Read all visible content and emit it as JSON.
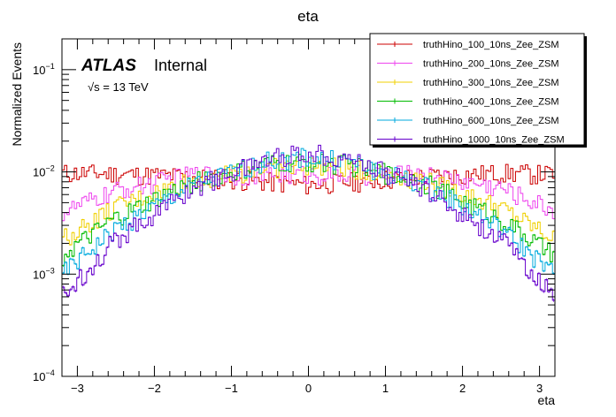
{
  "chart_data": {
    "type": "line",
    "title": "eta",
    "xlabel": "eta",
    "ylabel": "Normalized Events",
    "xlim": [
      -3.2,
      3.2
    ],
    "ylim": [
      0.0001,
      0.2
    ],
    "yscale": "log",
    "x_ticks": [
      {
        "value": -3,
        "label": "−3"
      },
      {
        "value": -2,
        "label": "−2"
      },
      {
        "value": -1,
        "label": "−1"
      },
      {
        "value": 0,
        "label": "0"
      },
      {
        "value": 1,
        "label": "1"
      },
      {
        "value": 2,
        "label": "2"
      },
      {
        "value": 3,
        "label": "3"
      }
    ],
    "y_ticks": [
      {
        "value": 0.0001,
        "base": "10",
        "exp": "−4"
      },
      {
        "value": 0.001,
        "base": "10",
        "exp": "−3"
      },
      {
        "value": 0.01,
        "base": "10",
        "exp": "−2"
      },
      {
        "value": 0.1,
        "base": "10",
        "exp": "−1"
      }
    ],
    "annotations": {
      "experiment": "ATLAS",
      "status": "Internal",
      "energy_sqrt": "√s",
      "energy_value": " = 13 TeV"
    },
    "legend_position": "top-right",
    "series": [
      {
        "name": "truthHino_100_10ns_Zee_ZSM",
        "color": "#cc0000",
        "eta": [
          -3.2,
          -2.5,
          -1.5,
          -0.5,
          0,
          0.5,
          1.5,
          2.5,
          3.2
        ],
        "values": [
          0.0098,
          0.0096,
          0.009,
          0.008,
          0.0075,
          0.008,
          0.009,
          0.0098,
          0.0095
        ]
      },
      {
        "name": "truthHino_200_10ns_Zee_ZSM",
        "color": "#ee44ee",
        "eta": [
          -3.2,
          -2.5,
          -1.5,
          -0.5,
          0,
          0.5,
          1.5,
          2.5,
          3.2
        ],
        "values": [
          0.004,
          0.0065,
          0.0095,
          0.0095,
          0.0095,
          0.0095,
          0.0095,
          0.007,
          0.0042
        ]
      },
      {
        "name": "truthHino_300_10ns_Zee_ZSM",
        "color": "#f0d000",
        "eta": [
          -3.2,
          -2.5,
          -1.5,
          -0.5,
          0,
          0.5,
          1.5,
          2.5,
          3.2
        ],
        "values": [
          0.0022,
          0.0045,
          0.0085,
          0.011,
          0.0115,
          0.011,
          0.0085,
          0.0045,
          0.0022
        ]
      },
      {
        "name": "truthHino_400_10ns_Zee_ZSM",
        "color": "#00bb00",
        "eta": [
          -3.2,
          -2.5,
          -1.5,
          -0.5,
          0,
          0.5,
          1.5,
          2.5,
          3.2
        ],
        "values": [
          0.0015,
          0.0035,
          0.008,
          0.012,
          0.0125,
          0.012,
          0.008,
          0.0035,
          0.0015
        ]
      },
      {
        "name": "truthHino_600_10ns_Zee_ZSM",
        "color": "#00aadd",
        "eta": [
          -3.2,
          -2.5,
          -1.5,
          -0.5,
          0,
          0.5,
          1.5,
          2.5,
          3.2
        ],
        "values": [
          0.001,
          0.0028,
          0.0075,
          0.013,
          0.014,
          0.013,
          0.0075,
          0.0028,
          0.001
        ]
      },
      {
        "name": "truthHino_1000_10ns_Zee_ZSM",
        "color": "#6600cc",
        "eta": [
          -3.2,
          -2.5,
          -1.5,
          -0.5,
          0,
          0.5,
          1.5,
          2.5,
          3.2
        ],
        "values": [
          0.0006,
          0.0022,
          0.007,
          0.014,
          0.0155,
          0.014,
          0.007,
          0.0022,
          0.0006
        ]
      }
    ]
  }
}
